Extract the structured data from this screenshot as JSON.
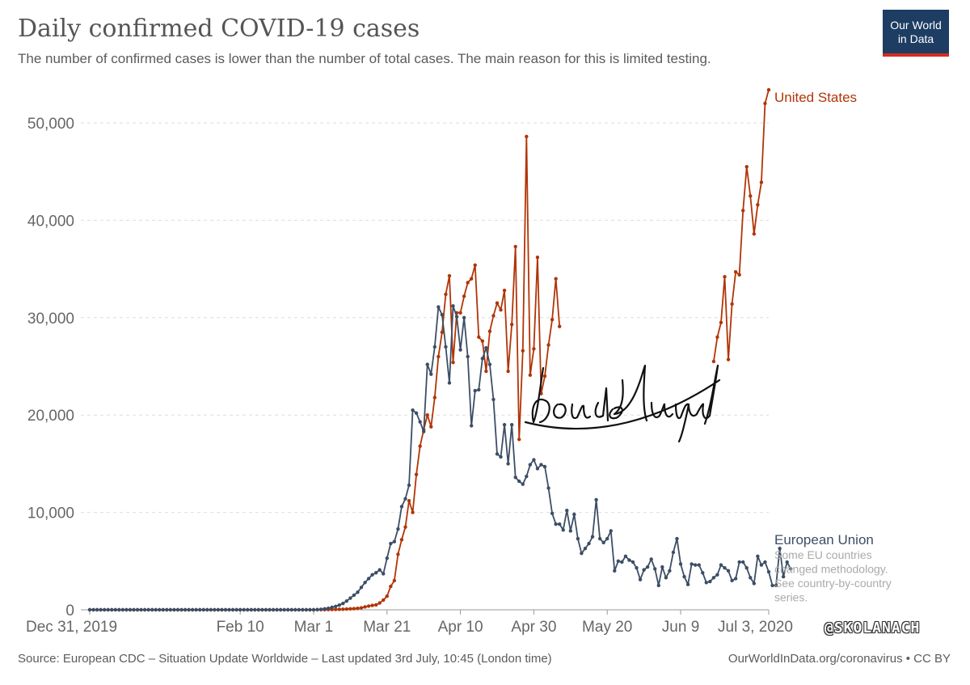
{
  "header": {
    "title": "Daily confirmed COVID-19 cases",
    "subtitle": "The number of confirmed cases is lower than the number of total cases. The main reason for this is limited testing."
  },
  "logo": {
    "line1": "Our World",
    "line2": "in Data"
  },
  "footer": {
    "source": "Source: European CDC – Situation Update Worldwide – Last updated 3rd July, 10:45 (London time)",
    "link": "OurWorldInData.org/coronavirus • CC BY"
  },
  "watermark": "@SKOLANACH",
  "colors": {
    "us": "#b13507",
    "eu": "#3c4e66",
    "grid": "#dddddd",
    "text": "#666666"
  },
  "chart_data": {
    "type": "line",
    "title": "Daily confirmed COVID-19 cases",
    "xlabel": "",
    "ylabel": "",
    "x_start_label": "Dec 31, 2019",
    "days": 186,
    "ylim": [
      0,
      55000
    ],
    "yticks": [
      0,
      10000,
      20000,
      30000,
      40000,
      50000
    ],
    "ytick_labels": [
      "0",
      "10,000",
      "20,000",
      "30,000",
      "40,000",
      "50,000"
    ],
    "xticks": [
      {
        "day": 0,
        "label": "Dec 31, 2019"
      },
      {
        "day": 41,
        "label": "Feb 10"
      },
      {
        "day": 61,
        "label": "Mar 1"
      },
      {
        "day": 81,
        "label": "Mar 21"
      },
      {
        "day": 101,
        "label": "Apr 10"
      },
      {
        "day": 121,
        "label": "Apr 30"
      },
      {
        "day": 141,
        "label": "May 20"
      },
      {
        "day": 161,
        "label": "Jun 9"
      },
      {
        "day": 185,
        "label": "Jul 3, 2020"
      }
    ],
    "series": [
      {
        "name": "United States",
        "color": "#b13507",
        "start_day": 0,
        "values": [
          0,
          0,
          0,
          0,
          0,
          0,
          0,
          0,
          0,
          0,
          0,
          0,
          0,
          0,
          0,
          0,
          0,
          0,
          0,
          0,
          0,
          0,
          0,
          0,
          0,
          0,
          0,
          0,
          0,
          0,
          0,
          0,
          0,
          0,
          0,
          0,
          0,
          0,
          0,
          0,
          0,
          0,
          0,
          0,
          0,
          0,
          0,
          0,
          0,
          0,
          0,
          0,
          0,
          0,
          0,
          0,
          0,
          0,
          0,
          0,
          0,
          0,
          10,
          15,
          20,
          25,
          30,
          40,
          50,
          60,
          80,
          100,
          120,
          150,
          200,
          300,
          380,
          450,
          500,
          700,
          1000,
          1400,
          2400,
          3000,
          5700,
          7200,
          8500,
          11200,
          10000,
          13900,
          16800,
          18500,
          20000,
          18800,
          21800,
          26000,
          28500,
          32400,
          34300,
          25400,
          30500,
          30500,
          32200,
          33600,
          34000,
          35400,
          28000,
          27600,
          24500,
          28600,
          30200,
          31500,
          30800,
          32800,
          24500,
          29300,
          37300,
          17500,
          26600,
          48600,
          24100,
          26800,
          36200,
          22200,
          24000,
          27200,
          29800,
          34000,
          29100
        ]
      },
      {
        "name": "United States",
        "color": "#b13507",
        "start_day": 170,
        "values": [
          25500,
          28000,
          29500,
          34200,
          25700,
          31400,
          34700,
          34400,
          41000,
          45500,
          42500,
          38600,
          41600,
          43900,
          52000,
          53400
        ]
      },
      {
        "name": "European Union",
        "color": "#3c4e66",
        "start_day": 0,
        "values": [
          0,
          0,
          0,
          0,
          0,
          0,
          0,
          0,
          0,
          0,
          0,
          0,
          0,
          0,
          0,
          0,
          0,
          0,
          0,
          0,
          0,
          0,
          0,
          0,
          0,
          0,
          0,
          0,
          0,
          0,
          0,
          0,
          0,
          0,
          0,
          0,
          0,
          0,
          0,
          0,
          0,
          0,
          0,
          0,
          0,
          0,
          0,
          0,
          0,
          0,
          0,
          0,
          0,
          0,
          0,
          0,
          0,
          0,
          0,
          0,
          0,
          0,
          20,
          50,
          100,
          150,
          250,
          350,
          480,
          650,
          900,
          1200,
          1500,
          1800,
          2300,
          2800,
          3200,
          3600,
          3800,
          4100,
          3700,
          5300,
          6800,
          7000,
          8300,
          10600,
          11400,
          12800,
          20500,
          20200,
          19300,
          18300,
          25200,
          24200,
          27000,
          31100,
          30300,
          27000,
          23300,
          31200,
          30100,
          26700,
          30000,
          26000,
          18900,
          22500,
          22600,
          25800,
          26900,
          25200,
          21600,
          16000,
          15700,
          19000,
          15000,
          19000,
          13600,
          13200,
          12900,
          13700,
          14900,
          15400,
          14500,
          14900,
          14700,
          12500,
          9900,
          8800,
          8800,
          8200,
          10200,
          8100,
          9800,
          7300,
          5800,
          6300,
          6800,
          7500,
          11300,
          7300,
          6900,
          7300,
          8100,
          4000,
          5000,
          4900,
          5500,
          5100,
          4900,
          4300,
          3100,
          4100,
          4400,
          5200,
          4200,
          2500,
          4400,
          3300,
          4000,
          5900,
          7300,
          4700,
          3400,
          2600,
          4700,
          4600,
          4600,
          3800,
          2800,
          2900,
          3300,
          3600,
          4600,
          4300,
          4000,
          3000,
          3200,
          4900,
          4900,
          4300,
          3300,
          2700,
          5500,
          4600,
          4900,
          3900,
          2500,
          2500,
          6300,
          3400,
          4900,
          4200
        ]
      }
    ],
    "annotations": {
      "us_label": "United States",
      "eu_label": "European Union",
      "eu_note": [
        "Some EU countries",
        "changed methodology.",
        "See country-by-country",
        "series."
      ]
    }
  }
}
